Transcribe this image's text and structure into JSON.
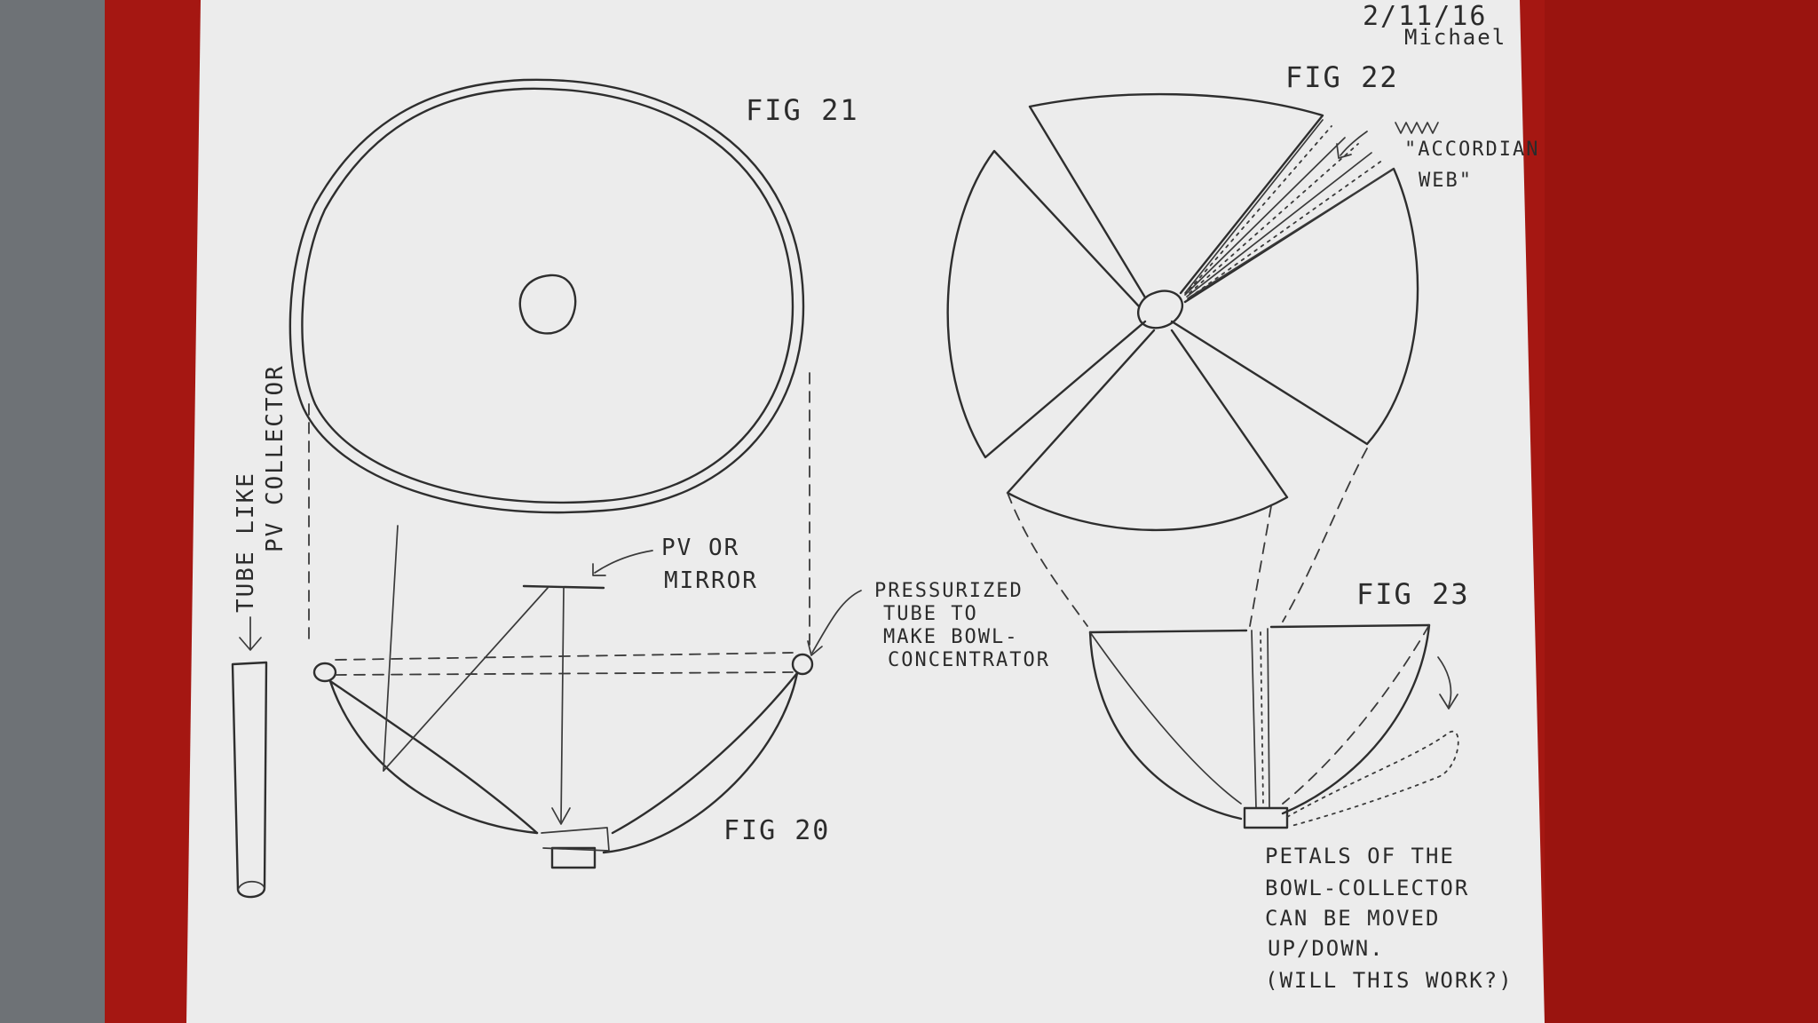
{
  "colors": {
    "background_left": "#6e7276",
    "background_red": "#a51712",
    "paper": "#ececec",
    "ink": "#2e2e2e"
  },
  "header": {
    "date": "2/11/16",
    "author": "Michael"
  },
  "fig21": {
    "label": "FIG 21"
  },
  "fig22": {
    "label": "FIG 22",
    "accordion_line1": "\"ACCORDIAN",
    "accordion_line2": "WEB\""
  },
  "fig20": {
    "label": "FIG 20",
    "tube_line1": "TUBE LIKE",
    "tube_line2": "PV COLLECTOR",
    "pv_line1": "PV OR",
    "pv_line2": "MIRROR",
    "pressurized_line1": "PRESSURIZED",
    "pressurized_line2": "TUBE TO",
    "pressurized_line3": "MAKE BOWL-",
    "pressurized_line4": "CONCENTRATOR"
  },
  "fig23": {
    "label": "FIG 23",
    "note_line1": "PETALS OF THE",
    "note_line2": "BOWL-COLLECTOR",
    "note_line3": "CAN BE MOVED",
    "note_line4": "UP/DOWN.",
    "note_line5": "(WILL THIS WORK?)"
  }
}
